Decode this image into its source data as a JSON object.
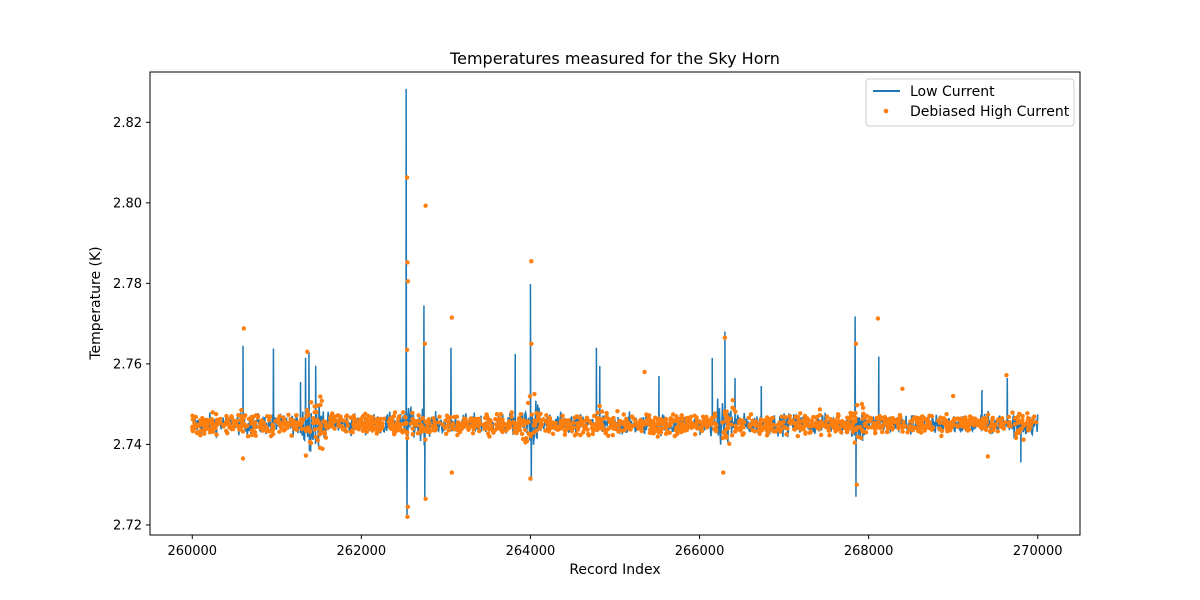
{
  "chart_data": {
    "type": "line",
    "title": "Temperatures measured for the Sky Horn",
    "xlabel": "Record Index",
    "ylabel": "Temperature (K)",
    "xlim": [
      259500,
      270500
    ],
    "ylim": [
      2.7175,
      2.8325
    ],
    "xticks": [
      260000,
      262000,
      264000,
      266000,
      268000,
      270000
    ],
    "xtick_labels": [
      "260000",
      "262000",
      "264000",
      "266000",
      "268000",
      "270000"
    ],
    "yticks": [
      2.72,
      2.74,
      2.76,
      2.78,
      2.8,
      2.82
    ],
    "ytick_labels": [
      "2.72",
      "2.74",
      "2.76",
      "2.78",
      "2.80",
      "2.82"
    ],
    "grid": false,
    "legend_position": "top-right",
    "baseline": 2.745,
    "series": [
      {
        "name": "Low Current",
        "kind": "line",
        "color": "#1f77b4",
        "spikes": [
          {
            "x": 260600,
            "y": 2.7645
          },
          {
            "x": 260960,
            "y": 2.7638
          },
          {
            "x": 261280,
            "y": 2.7555
          },
          {
            "x": 261340,
            "y": 2.7615
          },
          {
            "x": 261380,
            "y": 2.763
          },
          {
            "x": 261460,
            "y": 2.7595
          },
          {
            "x": 262530,
            "y": 2.8283
          },
          {
            "x": 262540,
            "y": 2.7215
          },
          {
            "x": 262740,
            "y": 2.7745
          },
          {
            "x": 262750,
            "y": 2.7265
          },
          {
            "x": 263060,
            "y": 2.764
          },
          {
            "x": 263820,
            "y": 2.7625
          },
          {
            "x": 264000,
            "y": 2.7798
          },
          {
            "x": 264010,
            "y": 2.731
          },
          {
            "x": 264780,
            "y": 2.764
          },
          {
            "x": 264820,
            "y": 2.7595
          },
          {
            "x": 265520,
            "y": 2.757
          },
          {
            "x": 266150,
            "y": 2.7615
          },
          {
            "x": 266300,
            "y": 2.768
          },
          {
            "x": 266420,
            "y": 2.7565
          },
          {
            "x": 266730,
            "y": 2.7545
          },
          {
            "x": 267840,
            "y": 2.7718
          },
          {
            "x": 267850,
            "y": 2.727
          },
          {
            "x": 268120,
            "y": 2.7618
          },
          {
            "x": 269340,
            "y": 2.7535
          },
          {
            "x": 269640,
            "y": 2.7565
          },
          {
            "x": 269800,
            "y": 2.7355
          }
        ]
      },
      {
        "name": "Debiased High Current",
        "kind": "scatter",
        "color": "#ff7f0e",
        "outliers": [
          {
            "x": 260610,
            "y": 2.7688
          },
          {
            "x": 260600,
            "y": 2.7365
          },
          {
            "x": 261360,
            "y": 2.763
          },
          {
            "x": 262540,
            "y": 2.8063
          },
          {
            "x": 262545,
            "y": 2.7852
          },
          {
            "x": 262550,
            "y": 2.7805
          },
          {
            "x": 262540,
            "y": 2.7635
          },
          {
            "x": 262545,
            "y": 2.722
          },
          {
            "x": 262550,
            "y": 2.7245
          },
          {
            "x": 262760,
            "y": 2.7993
          },
          {
            "x": 262750,
            "y": 2.765
          },
          {
            "x": 262760,
            "y": 2.7265
          },
          {
            "x": 263070,
            "y": 2.7715
          },
          {
            "x": 263070,
            "y": 2.733
          },
          {
            "x": 264010,
            "y": 2.7855
          },
          {
            "x": 264010,
            "y": 2.765
          },
          {
            "x": 264000,
            "y": 2.7315
          },
          {
            "x": 265350,
            "y": 2.758
          },
          {
            "x": 266300,
            "y": 2.7665
          },
          {
            "x": 266280,
            "y": 2.733
          },
          {
            "x": 267850,
            "y": 2.765
          },
          {
            "x": 267860,
            "y": 2.73
          },
          {
            "x": 268110,
            "y": 2.7713
          },
          {
            "x": 268400,
            "y": 2.7538
          },
          {
            "x": 269000,
            "y": 2.752
          },
          {
            "x": 269630,
            "y": 2.7572
          },
          {
            "x": 269410,
            "y": 2.737
          }
        ]
      }
    ],
    "regions_of_higher_noise": [
      {
        "from": 261300,
        "to": 261550,
        "amp": 0.009
      },
      {
        "from": 262500,
        "to": 262800,
        "amp": 0.006
      },
      {
        "from": 263900,
        "to": 264100,
        "amp": 0.008
      },
      {
        "from": 264750,
        "to": 264850,
        "amp": 0.006
      },
      {
        "from": 266200,
        "to": 266450,
        "amp": 0.008
      },
      {
        "from": 267800,
        "to": 267950,
        "amp": 0.007
      },
      {
        "from": 269700,
        "to": 269850,
        "amp": 0.006
      }
    ]
  }
}
